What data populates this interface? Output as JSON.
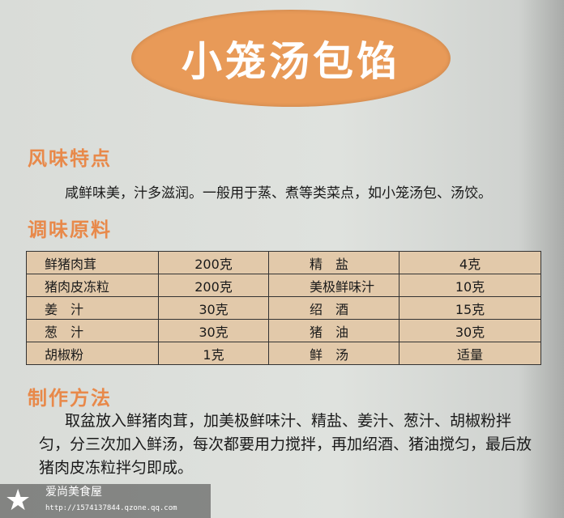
{
  "title": "小笼汤包馅",
  "sections": {
    "flavor": "风味特点",
    "seasoning": "调味原料",
    "method": "制作方法"
  },
  "flavor_text": "咸鲜味美，汁多滋润。一般用于蒸、煮等类菜点，如小笼汤包、汤饺。",
  "ingredients": [
    [
      "鲜猪肉茸",
      "200克",
      "精　盐",
      "4克"
    ],
    [
      "猪肉皮冻粒",
      "200克",
      "美极鲜味汁",
      "10克"
    ],
    [
      "姜　汁",
      "30克",
      "绍　酒",
      "15克"
    ],
    [
      "葱　汁",
      "30克",
      "猪　油",
      "30克"
    ],
    [
      "胡椒粉",
      "1克",
      "鲜　汤",
      "适量"
    ]
  ],
  "method_text": "取盆放入鲜猪肉茸，加美极鲜味汁、精盐、姜汁、葱汁、胡椒粉拌匀，分三次加入鲜汤，每次都要用力搅拌，再加绍酒、猪油搅匀，最后放猪肉皮冻粒拌匀即成。",
  "watermark": {
    "name": "爱尚美食屋",
    "url": "http://1574137844.qzone.qq.com"
  },
  "colors": {
    "accent": "#e8894a",
    "table_bg": "#e2c9aa"
  }
}
